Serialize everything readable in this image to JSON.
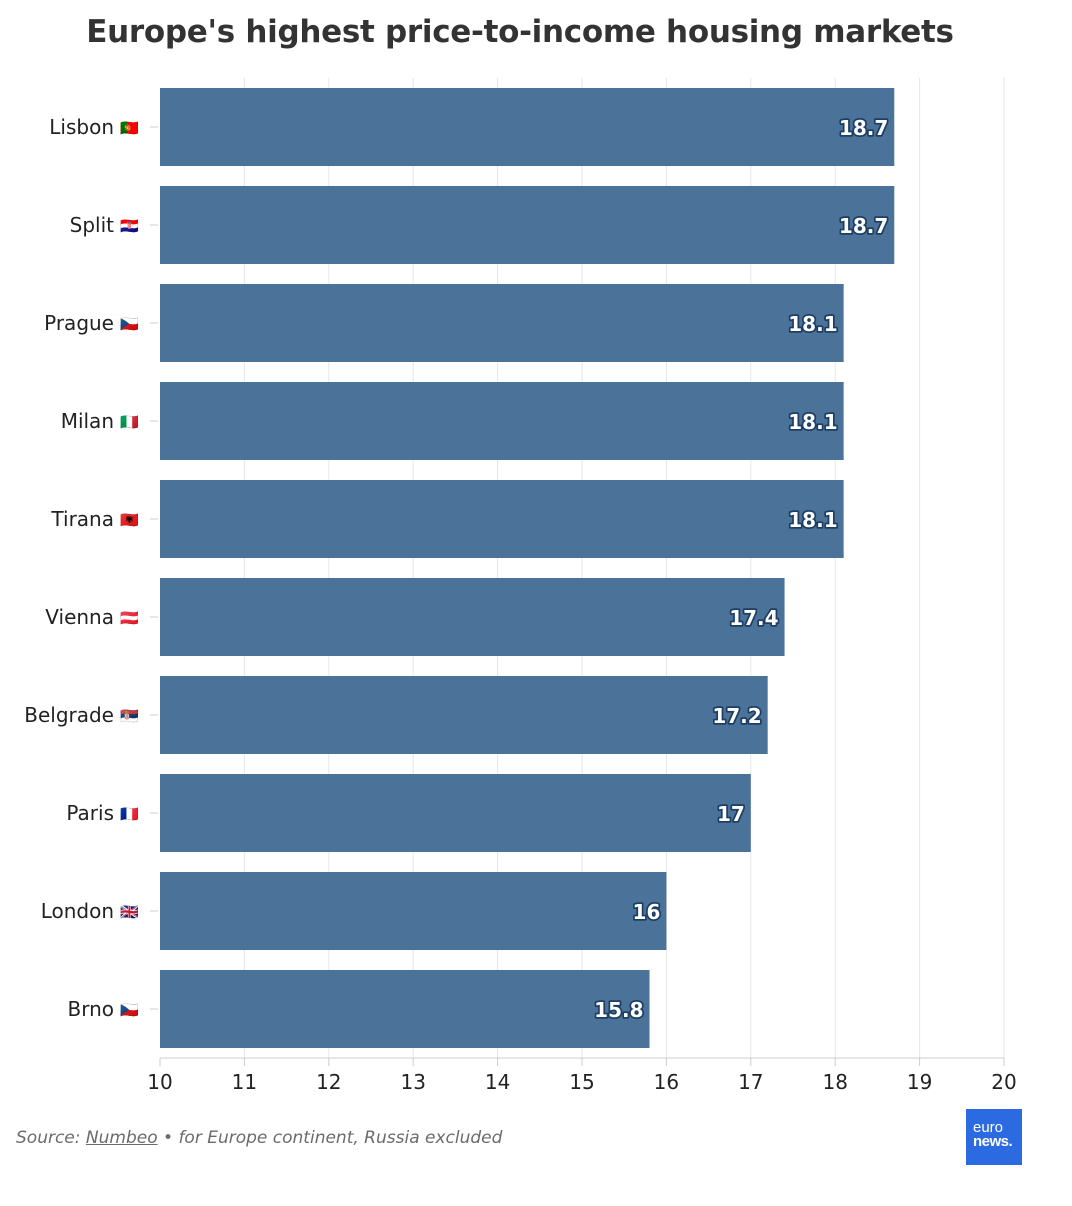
{
  "chart_data": {
    "type": "bar",
    "orientation": "horizontal",
    "title": "Europe's highest price-to-income housing markets",
    "categories": [
      {
        "city": "Lisbon",
        "flag": "🇵🇹"
      },
      {
        "city": "Split",
        "flag": "🇭🇷"
      },
      {
        "city": "Prague",
        "flag": "🇨🇿"
      },
      {
        "city": "Milan",
        "flag": "🇮🇹"
      },
      {
        "city": "Tirana",
        "flag": "🇦🇱"
      },
      {
        "city": "Vienna",
        "flag": "🇦🇹"
      },
      {
        "city": "Belgrade",
        "flag": "🇷🇸"
      },
      {
        "city": "Paris",
        "flag": "🇫🇷"
      },
      {
        "city": "London",
        "flag": "🇬🇧"
      },
      {
        "city": "Brno",
        "flag": "🇨🇿"
      }
    ],
    "values": [
      18.7,
      18.7,
      18.1,
      18.1,
      18.1,
      17.4,
      17.2,
      17,
      16,
      15.8
    ],
    "data_labels": [
      "18.7",
      "18.7",
      "18.1",
      "18.1",
      "18.1",
      "17.4",
      "17.2",
      "17",
      "16",
      "15.8"
    ],
    "xlim": [
      10,
      20
    ],
    "xticks": [
      "10",
      "11",
      "12",
      "13",
      "14",
      "15",
      "16",
      "17",
      "18",
      "19",
      "20"
    ],
    "xlabel": "",
    "ylabel": "",
    "grid": "vertical",
    "legend": "none",
    "bar_color": "#4b7399",
    "label_color": "#ffffff",
    "label_outline_color": "#1d3e62"
  },
  "footer": {
    "source_prefix": "Source: ",
    "source_link": "Numbeo",
    "source_suffix": " • for Europe continent, Russia excluded",
    "logo_line1": "euro",
    "logo_line2": "news."
  }
}
